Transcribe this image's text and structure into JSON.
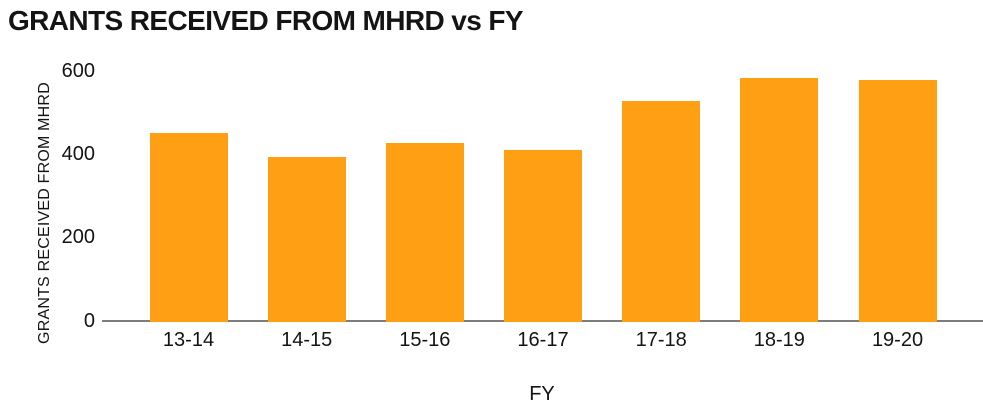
{
  "chart_data": {
    "type": "bar",
    "title": "GRANTS RECEIVED FROM MHRD vs FY",
    "xlabel": "FY",
    "ylabel": "GRANTS RECEIVED FROM MHRD",
    "categories": [
      "13-14",
      "14-15",
      "15-16",
      "16-17",
      "17-18",
      "18-19",
      "19-20"
    ],
    "values": [
      450,
      392,
      425,
      410,
      528,
      582,
      578
    ],
    "ylim": [
      0,
      600
    ],
    "yticks": [
      0,
      200,
      400,
      600
    ],
    "grid": false,
    "legend": false,
    "colors": {
      "bar": "#ffa014",
      "axis_line": "#7d7d7d",
      "text": "#141414",
      "background": "#ffffff"
    }
  }
}
